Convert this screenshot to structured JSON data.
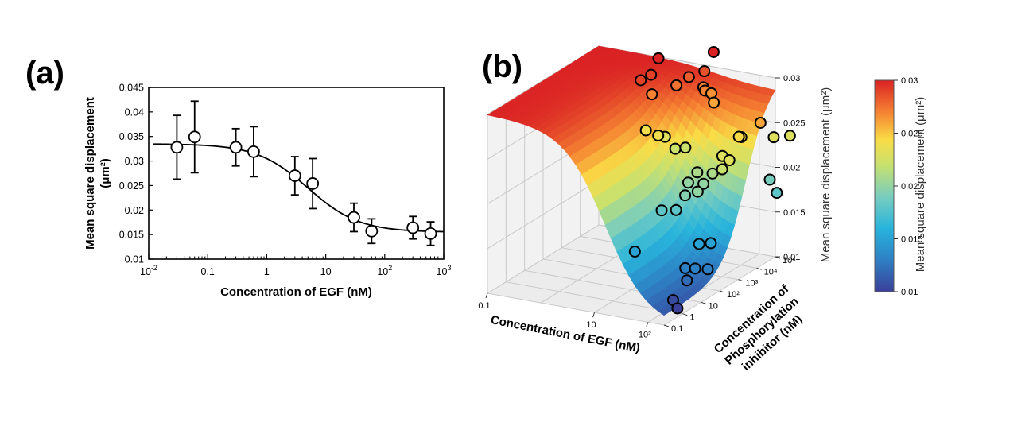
{
  "panels": {
    "a": "(a)",
    "b": "(b)"
  },
  "chart_data": [
    {
      "type": "scatter",
      "title": "",
      "xlabel": "Concentration of EGF (nM)",
      "ylabel_line1": "Mean square displacement",
      "ylabel_line2": "(μm²)",
      "xscale": "log",
      "xlim": [
        0.01,
        1000
      ],
      "ylim": [
        0.01,
        0.045
      ],
      "yticks": [
        "0.01",
        "0.015",
        "0.02",
        "0.025",
        "0.03",
        "0.035",
        "0.04",
        "0.045"
      ],
      "yticks_values": [
        0.01,
        0.015,
        0.02,
        0.025,
        0.03,
        0.035,
        0.04,
        0.045
      ],
      "xticks": [
        {
          "value": 0.01,
          "base": "10",
          "exp": "-2"
        },
        {
          "value": 0.1,
          "base": "0.1",
          "exp": ""
        },
        {
          "value": 1,
          "base": "1",
          "exp": ""
        },
        {
          "value": 10,
          "base": "10",
          "exp": ""
        },
        {
          "value": 100,
          "base": "10",
          "exp": "2"
        },
        {
          "value": 1000,
          "base": "10",
          "exp": "3"
        }
      ],
      "points": [
        {
          "x": 0.03,
          "y": 0.0328,
          "err": 0.0065
        },
        {
          "x": 0.06,
          "y": 0.0349,
          "err": 0.0073
        },
        {
          "x": 0.3,
          "y": 0.0328,
          "err": 0.0038
        },
        {
          "x": 0.6,
          "y": 0.0319,
          "err": 0.0051
        },
        {
          "x": 3,
          "y": 0.027,
          "err": 0.0039
        },
        {
          "x": 6,
          "y": 0.0254,
          "err": 0.0051
        },
        {
          "x": 30,
          "y": 0.0185,
          "err": 0.0029
        },
        {
          "x": 60,
          "y": 0.0157,
          "err": 0.0025
        },
        {
          "x": 300,
          "y": 0.0164,
          "err": 0.0023
        },
        {
          "x": 600,
          "y": 0.0152,
          "err": 0.0024
        }
      ],
      "fit": {
        "top": 0.0335,
        "bottom": 0.0155,
        "ec50": 5,
        "hill": 1
      }
    },
    {
      "type": "surface",
      "xlabel": "Concentration of EGF (nM)",
      "ylabel_lines": [
        "Concentration of",
        "Phosphorylation",
        "inhibitor (nM)"
      ],
      "zlabel": "Mean square displacement (μm²)",
      "x_ticks": [
        "0.1",
        "10",
        "10²"
      ],
      "y_ticks": [
        "0.1",
        "1",
        "10",
        "10²",
        "10³",
        "10⁴",
        "10⁵"
      ],
      "z_ticks": [
        "0.01",
        "0.015",
        "0.02",
        "0.025",
        "0.03"
      ],
      "zlim": [
        0.01,
        0.03
      ],
      "colorbar": {
        "label": "Mean square displacement (μm²)",
        "ticks": [
          "0.01",
          "0.015",
          "0.02",
          "0.025",
          "0.03"
        ],
        "range": [
          0.01,
          0.03
        ]
      },
      "points": [
        {
          "x": 0.15,
          "y": 4.9,
          "z": 0.03
        },
        {
          "x": 0.22,
          "y": 4.3,
          "z": 0.029
        },
        {
          "x": 0.27,
          "y": 4.2,
          "z": 0.027
        },
        {
          "x": 0.2,
          "y": 3.8,
          "z": 0.029
        },
        {
          "x": 0.4,
          "y": 3.5,
          "z": 0.024
        },
        {
          "x": 0.62,
          "y": 3.9,
          "z": 0.023
        },
        {
          "x": 0.7,
          "y": 3.3,
          "z": 0.024
        },
        {
          "x": 0.88,
          "y": 3.7,
          "z": 0.0222
        },
        {
          "x": 1.0,
          "y": 3.9,
          "z": 0.0222
        },
        {
          "x": 0.52,
          "y": 4.8,
          "z": 0.0275
        },
        {
          "x": 0.65,
          "y": 5.1,
          "z": 0.0282
        },
        {
          "x": 0.8,
          "y": 5.5,
          "z": 0.0285
        },
        {
          "x": 0.85,
          "y": 5.3,
          "z": 0.027
        },
        {
          "x": 0.95,
          "y": 5.1,
          "z": 0.027
        },
        {
          "x": 1.0,
          "y": 5.3,
          "z": 0.0265
        },
        {
          "x": 1.15,
          "y": 5.0,
          "z": 0.026
        },
        {
          "x": 0.8,
          "y": 6.0,
          "z": 0.03
        },
        {
          "x": 1.4,
          "y": 2.9,
          "z": 0.02
        },
        {
          "x": 1.5,
          "y": 3.1,
          "z": 0.021
        },
        {
          "x": 1.65,
          "y": 3.0,
          "z": 0.02
        },
        {
          "x": 1.75,
          "y": 3.2,
          "z": 0.021
        },
        {
          "x": 1.9,
          "y": 3.3,
          "z": 0.023
        },
        {
          "x": 2.0,
          "y": 3.0,
          "z": 0.022
        },
        {
          "x": 2.1,
          "y": 3.1,
          "z": 0.023
        },
        {
          "x": 2.15,
          "y": 3.6,
          "z": 0.025
        },
        {
          "x": 2.0,
          "y": 3.9,
          "z": 0.0245
        },
        {
          "x": 2.3,
          "y": 4.2,
          "z": 0.026
        },
        {
          "x": 1.25,
          "y": 1.9,
          "z": 0.018
        },
        {
          "x": 1.45,
          "y": 2.1,
          "z": 0.018
        },
        {
          "x": 1.55,
          "y": 2.3,
          "z": 0.0195
        },
        {
          "x": 1.75,
          "y": 2.4,
          "z": 0.02
        },
        {
          "x": 2.2,
          "y": 5.2,
          "z": 0.023
        },
        {
          "x": 2.4,
          "y": 5.5,
          "z": 0.023
        },
        {
          "x": 2.3,
          "y": 4.7,
          "z": 0.019
        },
        {
          "x": 2.5,
          "y": 4.5,
          "z": 0.018
        },
        {
          "x": 1.2,
          "y": 0.6,
          "z": 0.015
        },
        {
          "x": 1.95,
          "y": 1.9,
          "z": 0.015
        },
        {
          "x": 2.1,
          "y": 2.1,
          "z": 0.015
        },
        {
          "x": 1.9,
          "y": 1.3,
          "z": 0.013
        },
        {
          "x": 2.05,
          "y": 1.4,
          "z": 0.013
        },
        {
          "x": 2.25,
          "y": 1.5,
          "z": 0.013
        },
        {
          "x": 2.0,
          "y": 1.1,
          "z": 0.012
        },
        {
          "x": 1.95,
          "y": 0.5,
          "z": 0.0105
        },
        {
          "x": 2.1,
          "y": 0.3,
          "z": 0.01
        }
      ]
    }
  ]
}
